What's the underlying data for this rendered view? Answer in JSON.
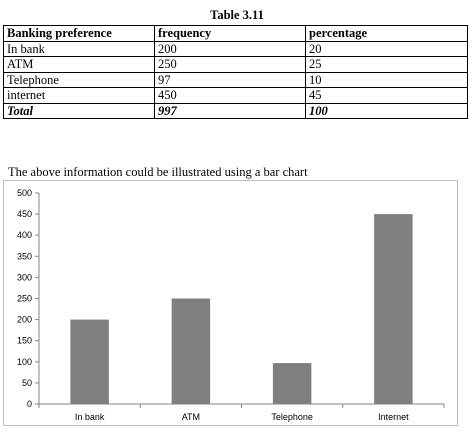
{
  "table": {
    "caption": "Table 3.11",
    "headers": [
      "Banking preference",
      "frequency",
      "percentage"
    ],
    "rows": [
      [
        "In bank",
        "200",
        "20"
      ],
      [
        "ATM",
        "250",
        "25"
      ],
      [
        "Telephone",
        "97",
        "10"
      ],
      [
        "internet",
        "450",
        "45"
      ]
    ],
    "total": [
      "Total",
      "997",
      "100"
    ]
  },
  "intro_text": "The above information could be illustrated using a bar chart",
  "chart_data": {
    "type": "bar",
    "categories": [
      "In bank",
      "ATM",
      "Telephone",
      "Internet"
    ],
    "values": [
      200,
      250,
      97,
      450
    ],
    "ylim": [
      0,
      500
    ],
    "yticks": [
      0,
      50,
      100,
      150,
      200,
      250,
      300,
      350,
      400,
      450,
      500
    ],
    "grid": false,
    "bar_color": "#7f7f7f",
    "title": "",
    "xlabel": "",
    "ylabel": ""
  }
}
